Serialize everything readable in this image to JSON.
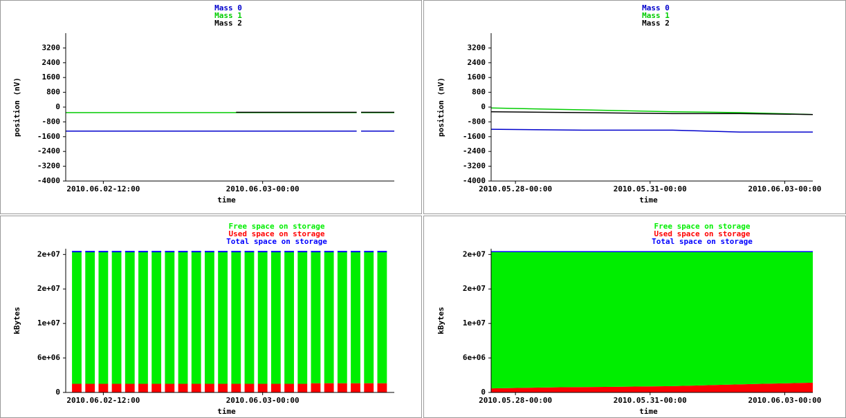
{
  "chart_data": [
    {
      "type": "line",
      "xlabel": "time",
      "ylabel": "position (nV)",
      "x": [
        "2010.06.02-09:10",
        "2010.06.02-22:00",
        "2010.06.03-07:05",
        "2010.06.03-07:15",
        "2010.06.03-07:25",
        "2010.06.03-09:55"
      ],
      "xlim": [
        "2010.06.02-09:10",
        "2010.06.03-09:55"
      ],
      "xticks": [
        "2010.06.02-12:00",
        "2010.06.03-00:00"
      ],
      "ylim": [
        -4000,
        4000
      ],
      "yticks": [
        3200,
        2400,
        1600,
        800,
        0,
        -800,
        -1600,
        -2400,
        -3200,
        -4000
      ],
      "series": [
        {
          "name": "Mass 0",
          "color": "#0000cc",
          "values": [
            -1300,
            -1300,
            -1300,
            null,
            -1300,
            -1300
          ]
        },
        {
          "name": "Mass 1",
          "color": "#00cc00",
          "values": [
            -300,
            -300,
            -300,
            null,
            -300,
            -300
          ]
        },
        {
          "name": "Mass 2",
          "color": "#000000",
          "values": [
            null,
            -280,
            -280,
            null,
            -280,
            -280
          ]
        }
      ]
    },
    {
      "type": "line",
      "xlabel": "time",
      "ylabel": "position (nV)",
      "x": [
        "2010.05.27-11:00",
        "2010.05.29-12:00",
        "2010.05.31-12:00",
        "2010.06.02-00:00",
        "2010.06.03-15:00"
      ],
      "xlim": [
        "2010.05.27-11:00",
        "2010.06.03-15:00"
      ],
      "xticks": [
        "2010.05.28-00:00",
        "2010.05.31-00:00",
        "2010.06.03-00:00"
      ],
      "ylim": [
        -4000,
        4000
      ],
      "yticks": [
        3200,
        2400,
        1600,
        800,
        0,
        -800,
        -1600,
        -2400,
        -3200,
        -4000
      ],
      "series": [
        {
          "name": "Mass 0",
          "color": "#0000cc",
          "values": [
            -1200,
            -1250,
            -1250,
            -1350,
            -1350
          ]
        },
        {
          "name": "Mass 1",
          "color": "#00cc00",
          "values": [
            -50,
            -150,
            -250,
            -300,
            -400
          ]
        },
        {
          "name": "Mass 2",
          "color": "#000000",
          "values": [
            -250,
            -300,
            -350,
            -350,
            -400
          ]
        }
      ]
    },
    {
      "type": "bar",
      "xlabel": "time",
      "ylabel": "kBytes",
      "x": [
        "2010.06.02-10:00",
        "2010.06.02-11:00",
        "2010.06.02-12:00",
        "2010.06.02-13:00",
        "2010.06.02-14:00",
        "2010.06.02-15:00",
        "2010.06.02-16:00",
        "2010.06.02-17:00",
        "2010.06.02-18:00",
        "2010.06.02-19:00",
        "2010.06.02-20:00",
        "2010.06.02-21:00",
        "2010.06.02-22:00",
        "2010.06.02-23:00",
        "2010.06.03-00:00",
        "2010.06.03-01:00",
        "2010.06.03-02:00",
        "2010.06.03-03:00",
        "2010.06.03-04:00",
        "2010.06.03-05:00",
        "2010.06.03-06:00",
        "2010.06.03-07:00",
        "2010.06.03-08:00",
        "2010.06.03-09:00"
      ],
      "xlim": [
        "2010.06.02-09:10",
        "2010.06.03-09:55"
      ],
      "xticks": [
        "2010.06.02-12:00",
        "2010.06.03-00:00"
      ],
      "ylim": [
        0,
        25000000
      ],
      "yticks": [
        0,
        {
          "value": 6000000,
          "label": "6e+06"
        },
        {
          "value": 12000000,
          "label": "1e+07"
        },
        {
          "value": 18000000,
          "label": "2e+07"
        },
        {
          "value": 24000000,
          "label": "2e+07"
        }
      ],
      "series": [
        {
          "name": "Free space on storage",
          "color": "#00ee00",
          "values": [
            23000000,
            23000000,
            23000000,
            23000000,
            23000000,
            23000000,
            23000000,
            23000000,
            23000000,
            23000000,
            23000000,
            23000000,
            23000000,
            23000000,
            23000000,
            23000000,
            23000000,
            23000000,
            22900000,
            22900000,
            22900000,
            22900000,
            22900000,
            22900000
          ]
        },
        {
          "name": "Used space on storage",
          "color": "#ff0000",
          "values": [
            1500000,
            1500000,
            1500000,
            1500000,
            1500000,
            1500000,
            1500000,
            1500000,
            1500000,
            1500000,
            1500000,
            1500000,
            1500000,
            1500000,
            1500000,
            1500000,
            1500000,
            1500000,
            1600000,
            1600000,
            1600000,
            1600000,
            1600000,
            1600000
          ]
        },
        {
          "name": "Total space on storage",
          "color": "#0000ff",
          "style": "line",
          "values": [
            24500000,
            24500000,
            24500000,
            24500000,
            24500000,
            24500000,
            24500000,
            24500000,
            24500000,
            24500000,
            24500000,
            24500000,
            24500000,
            24500000,
            24500000,
            24500000,
            24500000,
            24500000,
            24500000,
            24500000,
            24500000,
            24500000,
            24500000,
            24500000
          ]
        }
      ]
    },
    {
      "type": "area",
      "xlabel": "time",
      "ylabel": "kBytes",
      "x": [
        "2010.05.27-11:00",
        "2010.05.29-00:00",
        "2010.05.30-12:00",
        "2010.05.31-12:00",
        "2010.06.01-12:00",
        "2010.06.02-12:00",
        "2010.06.03-15:00"
      ],
      "xlim": [
        "2010.05.27-11:00",
        "2010.06.03-15:00"
      ],
      "xticks": [
        "2010.05.28-00:00",
        "2010.05.31-00:00",
        "2010.06.03-00:00"
      ],
      "ylim": [
        0,
        25000000
      ],
      "yticks": [
        0,
        {
          "value": 6000000,
          "label": "6e+06"
        },
        {
          "value": 12000000,
          "label": "1e+07"
        },
        {
          "value": 18000000,
          "label": "2e+07"
        },
        {
          "value": 24000000,
          "label": "2e+07"
        }
      ],
      "series": [
        {
          "name": "Free space on storage",
          "color": "#00ee00",
          "values": [
            23800000,
            23600000,
            23500000,
            23400000,
            23200000,
            23000000,
            22800000
          ]
        },
        {
          "name": "Used space on storage",
          "color": "#ff0000",
          "values": [
            700000,
            900000,
            1000000,
            1100000,
            1300000,
            1500000,
            1700000
          ]
        },
        {
          "name": "Total space on storage",
          "color": "#0000ff",
          "style": "line",
          "values": [
            24500000,
            24500000,
            24500000,
            24500000,
            24500000,
            24500000,
            24500000
          ]
        }
      ]
    }
  ]
}
